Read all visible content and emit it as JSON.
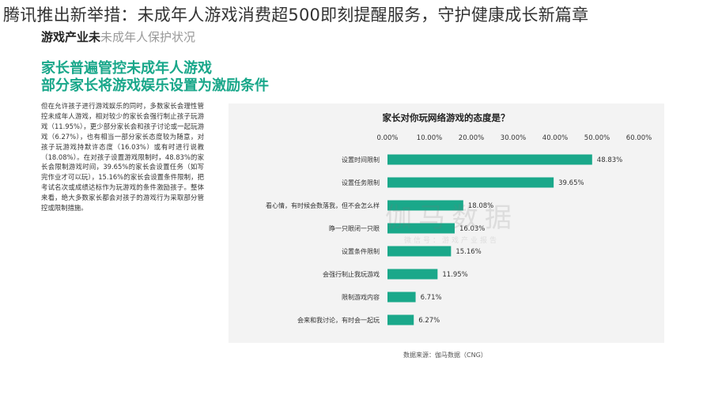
{
  "article": {
    "headline": "腾讯推出新举措：未成年人游戏消费超500即刻提醒服务，守护健康成长新篇章"
  },
  "report": {
    "section_label": "游戏产业未",
    "section_label_rest": "未成年人保护状况",
    "green_title_line1": "家长普遍管控未成年人游戏",
    "green_title_line2": "部分家长将游戏娱乐设置为激励条件",
    "body": "但在允许孩子进行游戏娱乐的同时，多数家长会理性管控未成年人游戏，相对较少的家长会强行制止孩子玩游戏（11.95%），更少部分家长会和孩子讨论或一起玩游戏（6.27%），也有相当一部分家长态度较为随意，对孩子玩游戏持默许态度（16.03%）或有时进行说教（18.08%）。在对孩子设置游戏限制时，48.83%的家长会限制游戏时间，39.65%的家长会设置任务（如写完作业才可以玩），15.16%的家长会设置条件限制，把考试名次或成绩达标作为玩游戏的条件激励孩子。整体来看，绝大多数家长都会对孩子的游戏行为采取部分管控或限制措施。",
    "source": "数据来源：伽马数据（CNG）",
    "watermark_main": "伽马数据",
    "watermark_sub": "微信号：游戏产业报告"
  },
  "colors": {
    "bar": "#1aa88a",
    "title_green": "#19a78a",
    "panel_bg": "#f3f3f3"
  },
  "chart_data": {
    "type": "bar",
    "orientation": "horizontal",
    "title": "家长对你玩网络游戏的态度是？",
    "categories": [
      "设置时间限制",
      "设置任务限制",
      "看心情，有时候会数落我，但不会怎么样",
      "睁一只眼闭一只眼",
      "设置条件限制",
      "会强行制止我玩游戏",
      "限制游戏内容",
      "会来和我讨论，有时会一起玩"
    ],
    "values": [
      48.83,
      39.65,
      18.08,
      16.03,
      15.16,
      11.95,
      6.71,
      6.27
    ],
    "value_labels": [
      "48.83%",
      "39.65%",
      "18.08%",
      "16.03%",
      "15.16%",
      "11.95%",
      "6.71%",
      "6.27%"
    ],
    "xlim": [
      0,
      60
    ],
    "x_ticks": [
      "0.00%",
      "10.00%",
      "20.00%",
      "30.00%",
      "40.00%",
      "50.00%",
      "60.00%"
    ],
    "xlabel": "",
    "ylabel": "",
    "grid": false,
    "legend": "none"
  }
}
